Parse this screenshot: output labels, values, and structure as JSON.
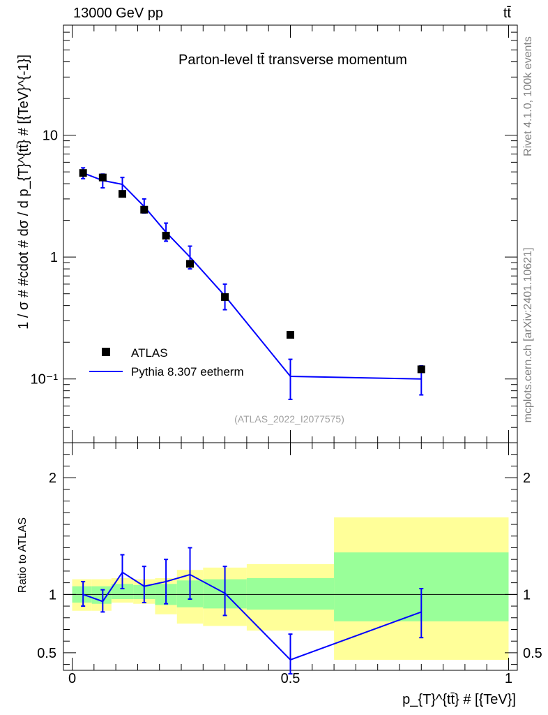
{
  "header": {
    "energy_label": "13000 GeV pp",
    "process_label": "tt̄"
  },
  "side_text": {
    "rivet": "Rivet 4.1.0,  100k events",
    "mcplots": "mcplots.cern.ch [arXiv:2401.10621]"
  },
  "chart_data": [
    {
      "type": "scatter",
      "panel": "main",
      "title": "Parton-level tt̄ transverse momentum",
      "ylabel": "1 / σ # #cdot # dσ / d p_{T}^{tt̄} # [{TeV}^{-1}]",
      "yscale": "log",
      "ylim": [
        0.03,
        80
      ],
      "xlim": [
        -0.02,
        1.02
      ],
      "ytick_labels": [
        "10",
        "1",
        "10⁻¹"
      ],
      "ytick_values": [
        10,
        1,
        0.1
      ],
      "annotation": "(ATLAS_2022_I2077575)",
      "legend": [
        "ATLAS",
        "Pythia 8.307 eetherm"
      ],
      "legend_position": "bottom-left",
      "series": [
        {
          "name": "ATLAS",
          "style": "square-markers",
          "color": "#000000",
          "x": [
            0.025,
            0.07,
            0.115,
            0.165,
            0.215,
            0.27,
            0.35,
            0.5,
            0.8
          ],
          "y": [
            4.9,
            4.5,
            3.3,
            2.45,
            1.5,
            0.88,
            0.47,
            0.23,
            0.12
          ]
        },
        {
          "name": "Pythia 8.307 eetherm",
          "style": "line-with-errorbars",
          "color": "#0000ff",
          "x": [
            0.025,
            0.07,
            0.115,
            0.165,
            0.215,
            0.27,
            0.35,
            0.5,
            0.8
          ],
          "y": [
            4.9,
            4.25,
            3.95,
            2.6,
            1.6,
            1.0,
            0.48,
            0.105,
            0.1
          ],
          "y_err_low": [
            4.4,
            3.7,
            3.45,
            2.3,
            1.35,
            0.8,
            0.37,
            0.068,
            0.074
          ],
          "y_err_high": [
            5.4,
            4.8,
            4.5,
            3.0,
            1.9,
            1.23,
            0.6,
            0.145,
            0.128
          ]
        }
      ]
    },
    {
      "type": "line",
      "panel": "ratio",
      "ylabel": "Ratio to ATLAS",
      "xlabel": "p_{T}^{tt̄} # [{TeV}]",
      "ylim": [
        0.35,
        2.3
      ],
      "xlim": [
        -0.02,
        1.02
      ],
      "ytick_labels": [
        "2",
        "1",
        "0.5"
      ],
      "ytick_values": [
        2,
        1,
        0.5
      ],
      "xtick_labels": [
        "0",
        "0.5",
        "1"
      ],
      "xtick_values": [
        0,
        0.5,
        1
      ],
      "reference_line": 1,
      "uncertainty_bands": [
        {
          "x_lo": 0.0,
          "x_hi": 0.045,
          "yellow": [
            0.86,
            1.13
          ],
          "green": [
            0.93,
            1.07
          ]
        },
        {
          "x_lo": 0.045,
          "x_hi": 0.09,
          "yellow": [
            0.86,
            1.13
          ],
          "green": [
            0.92,
            1.07
          ]
        },
        {
          "x_lo": 0.09,
          "x_hi": 0.14,
          "yellow": [
            0.93,
            1.14
          ],
          "green": [
            0.96,
            1.09
          ]
        },
        {
          "x_lo": 0.14,
          "x_hi": 0.19,
          "yellow": [
            0.92,
            1.13
          ],
          "green": [
            0.96,
            1.08
          ]
        },
        {
          "x_lo": 0.19,
          "x_hi": 0.24,
          "yellow": [
            0.83,
            1.14
          ],
          "green": [
            0.91,
            1.09
          ]
        },
        {
          "x_lo": 0.24,
          "x_hi": 0.3,
          "yellow": [
            0.75,
            1.21
          ],
          "green": [
            0.89,
            1.12
          ]
        },
        {
          "x_lo": 0.3,
          "x_hi": 0.4,
          "yellow": [
            0.73,
            1.23
          ],
          "green": [
            0.88,
            1.13
          ]
        },
        {
          "x_lo": 0.4,
          "x_hi": 0.6,
          "yellow": [
            0.69,
            1.26
          ],
          "green": [
            0.87,
            1.14
          ]
        },
        {
          "x_lo": 0.6,
          "x_hi": 1.0,
          "yellow": [
            0.44,
            1.66
          ],
          "green": [
            0.77,
            1.36
          ]
        }
      ],
      "series": [
        {
          "name": "Pythia 8.307 eetherm / ATLAS",
          "color": "#0000ff",
          "x": [
            0.025,
            0.07,
            0.115,
            0.165,
            0.215,
            0.27,
            0.35,
            0.5,
            0.8
          ],
          "y": [
            1.0,
            0.94,
            1.19,
            1.07,
            1.11,
            1.17,
            1.01,
            0.44,
            0.85
          ],
          "y_err_low": [
            0.9,
            0.85,
            1.05,
            0.93,
            0.92,
            0.96,
            0.82,
            0.32,
            0.63
          ],
          "y_err_high": [
            1.11,
            1.04,
            1.34,
            1.24,
            1.3,
            1.4,
            1.24,
            0.66,
            1.05
          ]
        }
      ]
    }
  ]
}
